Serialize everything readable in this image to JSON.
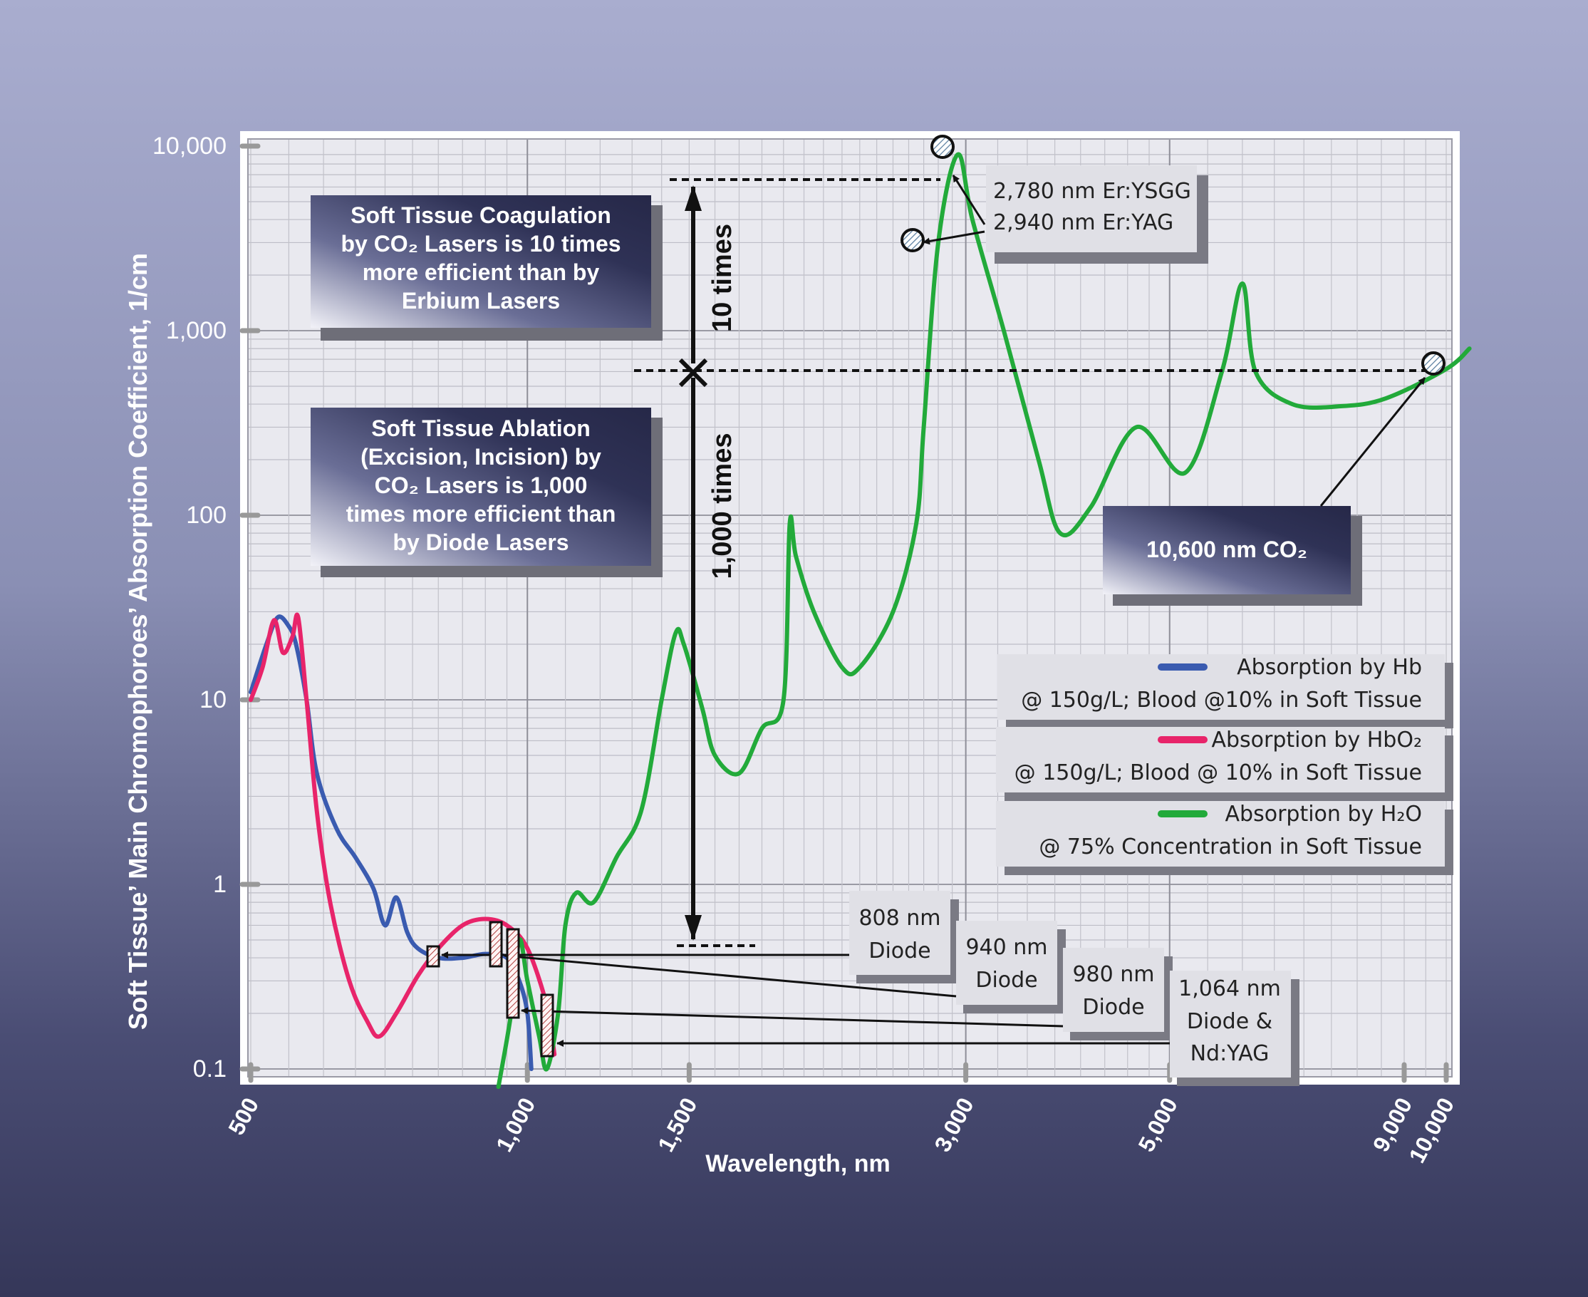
{
  "chart_data": {
    "type": "line",
    "x_scale": "log",
    "y_scale": "log",
    "xlim": [
      500,
      10000
    ],
    "ylim": [
      0.1,
      10000
    ],
    "ylabel": "Soft Tissue’ Main Chromophoroes’ Absorption Coefficient, 1/cm",
    "xlabel": "Wavelength, nm",
    "x_tick_labels": [
      "500",
      "1,000",
      "1,500",
      "3,000",
      "5,000",
      "9,000",
      "10,000"
    ],
    "x_tick_values": [
      500,
      1000,
      1500,
      3000,
      5000,
      9000,
      10000
    ],
    "y_tick_labels": [
      "0.1",
      "1",
      "10",
      "100",
      "1,000",
      "10,000"
    ],
    "y_tick_values": [
      0.1,
      1,
      10,
      100,
      1000,
      10000
    ],
    "series": [
      {
        "name": "Absorption by Hb",
        "color": "#3a5bb0",
        "points": [
          [
            500,
            11
          ],
          [
            520,
            20
          ],
          [
            535,
            28
          ],
          [
            550,
            25
          ],
          [
            560,
            20
          ],
          [
            575,
            10
          ],
          [
            590,
            4
          ],
          [
            620,
            2
          ],
          [
            650,
            1.4
          ],
          [
            680,
            0.95
          ],
          [
            700,
            0.6
          ],
          [
            720,
            0.85
          ],
          [
            740,
            0.55
          ],
          [
            760,
            0.45
          ],
          [
            800,
            0.4
          ],
          [
            850,
            0.4
          ],
          [
            900,
            0.42
          ],
          [
            950,
            0.4
          ],
          [
            980,
            0.3
          ],
          [
            1000,
            0.2
          ],
          [
            1010,
            0.1
          ]
        ]
      },
      {
        "name": "Absorption by HbO2",
        "color": "#e8246a",
        "points": [
          [
            500,
            10
          ],
          [
            515,
            15
          ],
          [
            530,
            27
          ],
          [
            542,
            18
          ],
          [
            555,
            22
          ],
          [
            563,
            28
          ],
          [
            575,
            10
          ],
          [
            590,
            2.5
          ],
          [
            610,
            0.8
          ],
          [
            640,
            0.3
          ],
          [
            670,
            0.18
          ],
          [
            690,
            0.15
          ],
          [
            720,
            0.2
          ],
          [
            760,
            0.32
          ],
          [
            800,
            0.45
          ],
          [
            850,
            0.6
          ],
          [
            900,
            0.65
          ],
          [
            950,
            0.6
          ],
          [
            1000,
            0.45
          ],
          [
            1050,
            0.22
          ],
          [
            1070,
            0.12
          ]
        ]
      },
      {
        "name": "Absorption by H2O",
        "color": "#22aa3a",
        "points": [
          [
            930,
            0.08
          ],
          [
            960,
            0.2
          ],
          [
            980,
            0.5
          ],
          [
            1000,
            0.3
          ],
          [
            1030,
            0.15
          ],
          [
            1050,
            0.1
          ],
          [
            1080,
            0.2
          ],
          [
            1100,
            0.6
          ],
          [
            1130,
            0.9
          ],
          [
            1180,
            0.8
          ],
          [
            1250,
            1.4
          ],
          [
            1330,
            2.5
          ],
          [
            1400,
            10
          ],
          [
            1450,
            23
          ],
          [
            1480,
            20
          ],
          [
            1550,
            9
          ],
          [
            1600,
            5
          ],
          [
            1700,
            4
          ],
          [
            1800,
            7
          ],
          [
            1900,
            10
          ],
          [
            1930,
            90
          ],
          [
            1960,
            60
          ],
          [
            2050,
            30
          ],
          [
            2200,
            15
          ],
          [
            2300,
            15
          ],
          [
            2500,
            30
          ],
          [
            2650,
            90
          ],
          [
            2700,
            300
          ],
          [
            2800,
            3000
          ],
          [
            2940,
            9000
          ],
          [
            3050,
            4000
          ],
          [
            3300,
            1000
          ],
          [
            3600,
            200
          ],
          [
            3800,
            80
          ],
          [
            4100,
            110
          ],
          [
            4600,
            300
          ],
          [
            5200,
            170
          ],
          [
            5700,
            600
          ],
          [
            6000,
            1800
          ],
          [
            6200,
            600
          ],
          [
            6800,
            400
          ],
          [
            7700,
            390
          ],
          [
            8600,
            430
          ],
          [
            10000,
            620
          ],
          [
            10600,
            800
          ]
        ]
      }
    ],
    "legend": [
      {
        "line1": "Absorption by Hb",
        "line2": "@ 150g/L; Blood @10% in Soft Tissue",
        "color": "#3a5bb0"
      },
      {
        "line1": "Absorption by HbO₂",
        "line2": "@ 150g/L; Blood @ 10% in Soft Tissue",
        "color": "#e8246a"
      },
      {
        "line1": "Absorption by H₂O",
        "line2": "@ 75% Concentration in Soft Tissue",
        "color": "#22aa3a"
      }
    ],
    "annotations": {
      "box_coagulation": [
        "Soft Tissue Coagulation",
        "by CO₂ Lasers is 10 times",
        "more efficient than by",
        "Erbium Lasers"
      ],
      "box_ablation": [
        "Soft Tissue Ablation",
        "(Excision, Incision) by",
        "CO₂ Lasers is 1,000",
        "times more efficient than",
        "by Diode Lasers"
      ],
      "ten_times": "10 times",
      "thousand_times": "1,000 times",
      "erbium": [
        "2,780 nm Er:YSGG",
        "2,940 nm Er:YAG"
      ],
      "co2": "10,600 nm CO₂",
      "d808": [
        "808 nm",
        "Diode"
      ],
      "d940": [
        "940 nm",
        "Diode"
      ],
      "d980": [
        "980 nm",
        "Diode"
      ],
      "d1064": [
        "1,064 nm",
        "Diode &",
        "Nd:YAG"
      ]
    }
  }
}
